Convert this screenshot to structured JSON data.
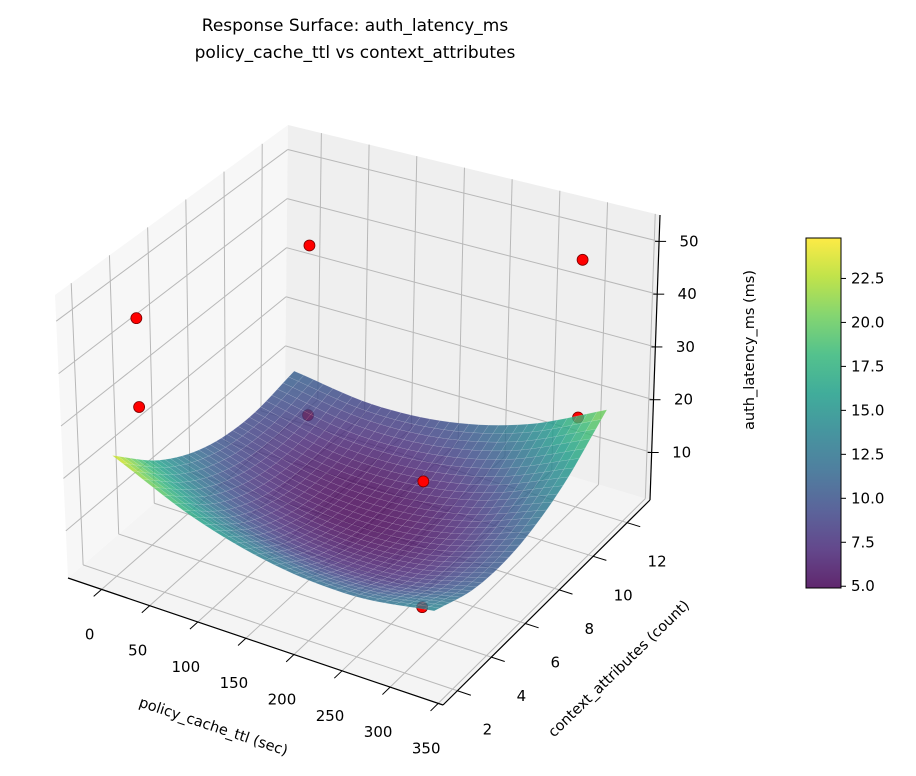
{
  "chart_data": {
    "type": "surface3d",
    "title": "Response Surface: auth_latency_ms",
    "subtitle": "policy_cache_ttl vs context_attributes",
    "xlabel": "policy_cache_ttl (sec)",
    "ylabel": "context_attributes (count)",
    "zlabel": "auth_latency_ms (ms)",
    "xlim": [
      -35,
      355
    ],
    "ylim": [
      1.15,
      13.35
    ],
    "zlim": [
      1,
      55
    ],
    "xticks": [
      0,
      50,
      100,
      150,
      200,
      250,
      300,
      350
    ],
    "yticks": [
      2,
      4,
      6,
      8,
      10,
      12
    ],
    "zticks": [
      10,
      20,
      30,
      40,
      50
    ],
    "grid": true,
    "colormap": "viridis",
    "surface": {
      "x": [
        0,
        82.5,
        165,
        247.5,
        330
      ],
      "y": [
        2,
        4.5,
        7,
        9.5,
        12
      ],
      "z": [
        [
          24.0,
          17.0,
          13.0,
          12.0,
          14.0
        ],
        [
          15.9,
          10.1,
          7.4,
          7.6,
          10.9
        ],
        [
          11.0,
          6.5,
          5.0,
          6.5,
          11.0
        ],
        [
          9.4,
          6.1,
          5.9,
          8.6,
          14.4
        ],
        [
          11.0,
          9.0,
          10.0,
          14.0,
          21.0
        ]
      ]
    },
    "scatter": {
      "color": "#ff0000",
      "points": [
        {
          "x": 10,
          "y": 3,
          "z": 48
        },
        {
          "x": 10,
          "y": 3,
          "z": 31
        },
        {
          "x": 15,
          "y": 12,
          "z": 37
        },
        {
          "x": 15,
          "y": 12,
          "z": 3
        },
        {
          "x": 300,
          "y": 12,
          "z": 48
        },
        {
          "x": 300,
          "y": 12,
          "z": 18
        },
        {
          "x": 300,
          "y": 3,
          "z": 33
        },
        {
          "x": 300,
          "y": 3,
          "z": 10
        }
      ]
    },
    "colorbar": {
      "clim": [
        4.9,
        24.8
      ],
      "ticks": [
        "5.0",
        "7.5",
        "10.0",
        "12.5",
        "15.0",
        "17.5",
        "20.0",
        "22.5"
      ],
      "tick_values": [
        5.0,
        7.5,
        10.0,
        12.5,
        15.0,
        17.5,
        20.0,
        22.5
      ]
    }
  }
}
